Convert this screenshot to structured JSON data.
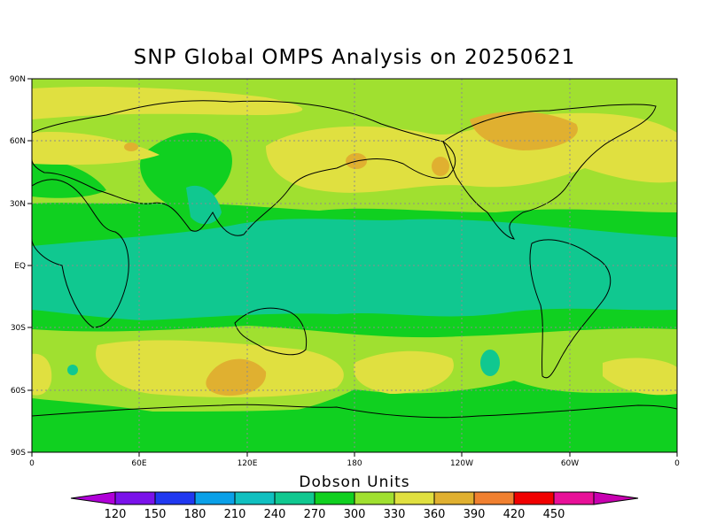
{
  "title": "SNP Global OMPS Analysis on 20250621",
  "colorbar": {
    "title": "Dobson Units",
    "labels": [
      "120",
      "150",
      "180",
      "210",
      "240",
      "270",
      "300",
      "330",
      "360",
      "390",
      "420",
      "450"
    ],
    "colors": [
      "#b000d8",
      "#7a12ea",
      "#2038f0",
      "#0aa0e8",
      "#10c0c0",
      "#10c890",
      "#10d020",
      "#a0e030",
      "#e0e040",
      "#e0b030",
      "#f08030",
      "#f00000",
      "#e81098",
      "#c800b0"
    ]
  },
  "axes": {
    "lat_labels": [
      "90N",
      "60N",
      "30N",
      "EQ",
      "30S",
      "60S",
      "90S"
    ],
    "lon_labels": [
      "0",
      "60E",
      "120E",
      "180",
      "120W",
      "60W",
      "0"
    ]
  },
  "palette": {
    "ocean_fill": "#10d020",
    "band_teal": "#10c890",
    "band_light": "#a0e030",
    "band_yellow": "#e0e040",
    "band_orange": "#e0b030"
  }
}
